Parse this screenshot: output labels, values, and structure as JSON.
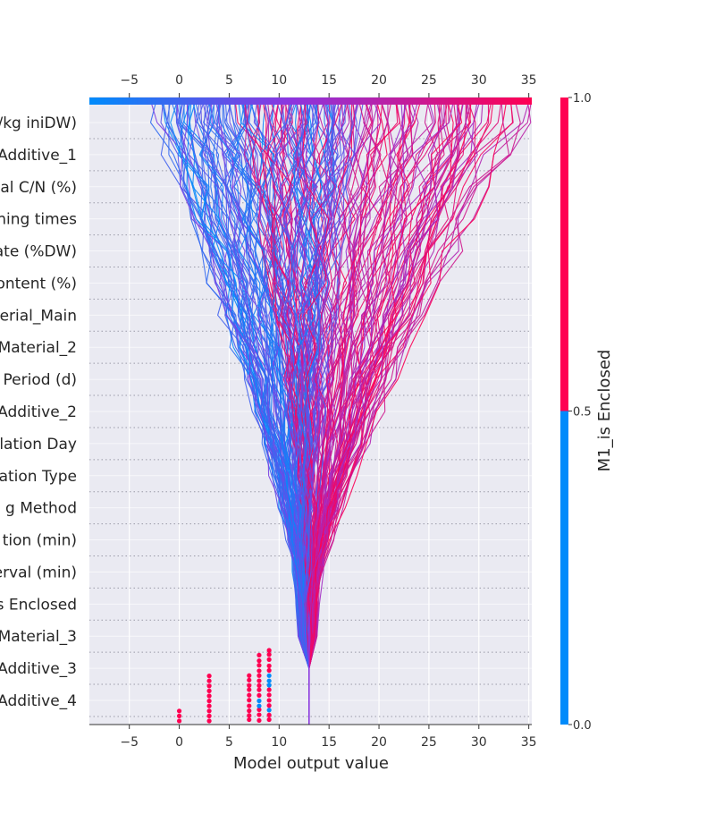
{
  "chart_data": {
    "type": "line",
    "subtype": "shap-decision-plot",
    "xlabel": "Model output value",
    "xlim": [
      -9,
      35.3
    ],
    "x_ticks": [
      -5,
      0,
      5,
      10,
      15,
      20,
      25,
      30,
      35
    ],
    "x_tick_labels": [
      "−5",
      "0",
      "5",
      "10",
      "15",
      "20",
      "25",
      "30",
      "35"
    ],
    "base_value": 13.0,
    "grid": true,
    "features": [
      "/kg iniDW)",
      "Additive_1",
      "al C/N (%)",
      "ning times",
      "ate (%DW)",
      "ontent (%)",
      "erial_Main",
      "Material_2",
      " Period (d)",
      "Additive_2",
      "lation Day",
      "ation Type",
      "g Method",
      "tion (min)",
      "erval (min)",
      "s Enclosed",
      "Material_3",
      "Additive_3",
      "Additive_4"
    ],
    "colorbar": {
      "title": "M1_is Enclosed",
      "ticks": [
        1.0,
        0.5,
        0.0
      ],
      "tick_labels": [
        "1.0",
        "0.5",
        "0.0"
      ],
      "low_color": "#008bfb",
      "high_color": "#ff0052"
    },
    "series_summary": {
      "count": 240,
      "enclosed_final_range": [
        7,
        34
      ],
      "open_final_range": [
        -2,
        18
      ],
      "dot_columns_x": [
        0,
        3,
        7,
        8,
        9
      ]
    }
  },
  "colors": {
    "low": "#008bfb",
    "mid": "#8b36e0",
    "high": "#ff0052",
    "plot_bg": "#eaeaf2",
    "grid": "#ffffff",
    "axis": "#333333"
  }
}
